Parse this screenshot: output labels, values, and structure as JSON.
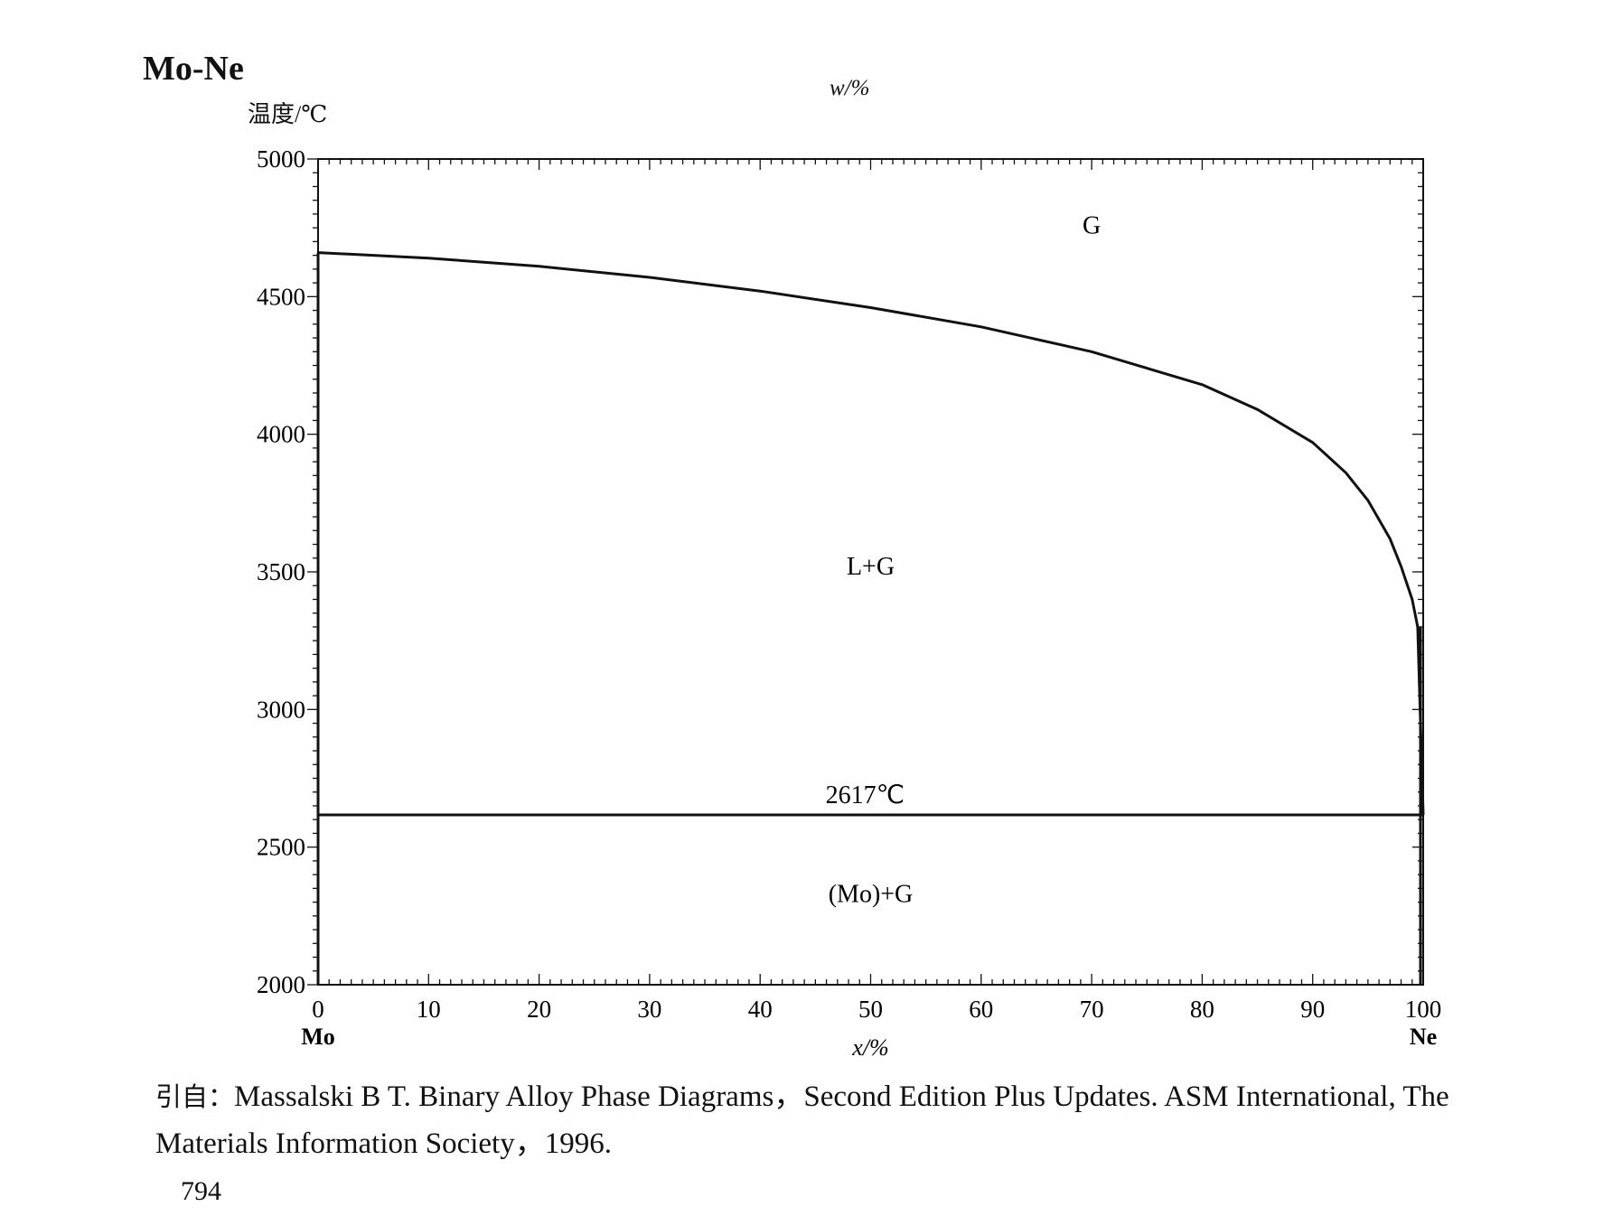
{
  "title": "Mo-Ne",
  "top_axis_label": "w/%",
  "citation": {
    "prefix": "引自：",
    "line1": "Massalski B T.  Binary Alloy Phase Diagrams，Second Edition Plus Updates.  ASM International, The",
    "line2": "Materials Information Society，1996."
  },
  "page_number": "794",
  "chart_data": {
    "type": "line",
    "subtype": "phase-diagram",
    "title": "Mo-Ne",
    "xlabel": "x/%",
    "ylabel": "温度/℃",
    "xlim": [
      0,
      100
    ],
    "ylim": [
      2000,
      5000
    ],
    "x_ticks": [
      0,
      10,
      20,
      30,
      40,
      50,
      60,
      70,
      80,
      90,
      100
    ],
    "y_ticks": [
      2000,
      2500,
      3000,
      3500,
      4000,
      4500,
      5000
    ],
    "x_end_labels": {
      "left": "Mo",
      "right": "Ne"
    },
    "grid": false,
    "series": [
      {
        "name": "",
        "x": [
          0,
          10,
          20,
          30,
          40,
          50,
          60,
          70,
          80,
          85,
          90,
          93,
          95,
          97,
          98,
          99,
          99.5,
          100
        ],
        "y": [
          4660,
          4640,
          4610,
          4570,
          4520,
          4460,
          4390,
          4300,
          4180,
          4090,
          3970,
          3860,
          3760,
          3620,
          3520,
          3400,
          3300,
          2617
        ]
      },
      {
        "name": "",
        "x": [
          0,
          100
        ],
        "y": [
          2617,
          2617
        ]
      }
    ],
    "annotations": [
      {
        "text": "G",
        "x": 70,
        "y": 4730
      },
      {
        "text": "L+G",
        "x": 50,
        "y": 3490
      },
      {
        "text": "2617℃",
        "x": 49.5,
        "y": 2660
      },
      {
        "text": "(Mo)+G",
        "x": 50,
        "y": 2300
      }
    ]
  }
}
